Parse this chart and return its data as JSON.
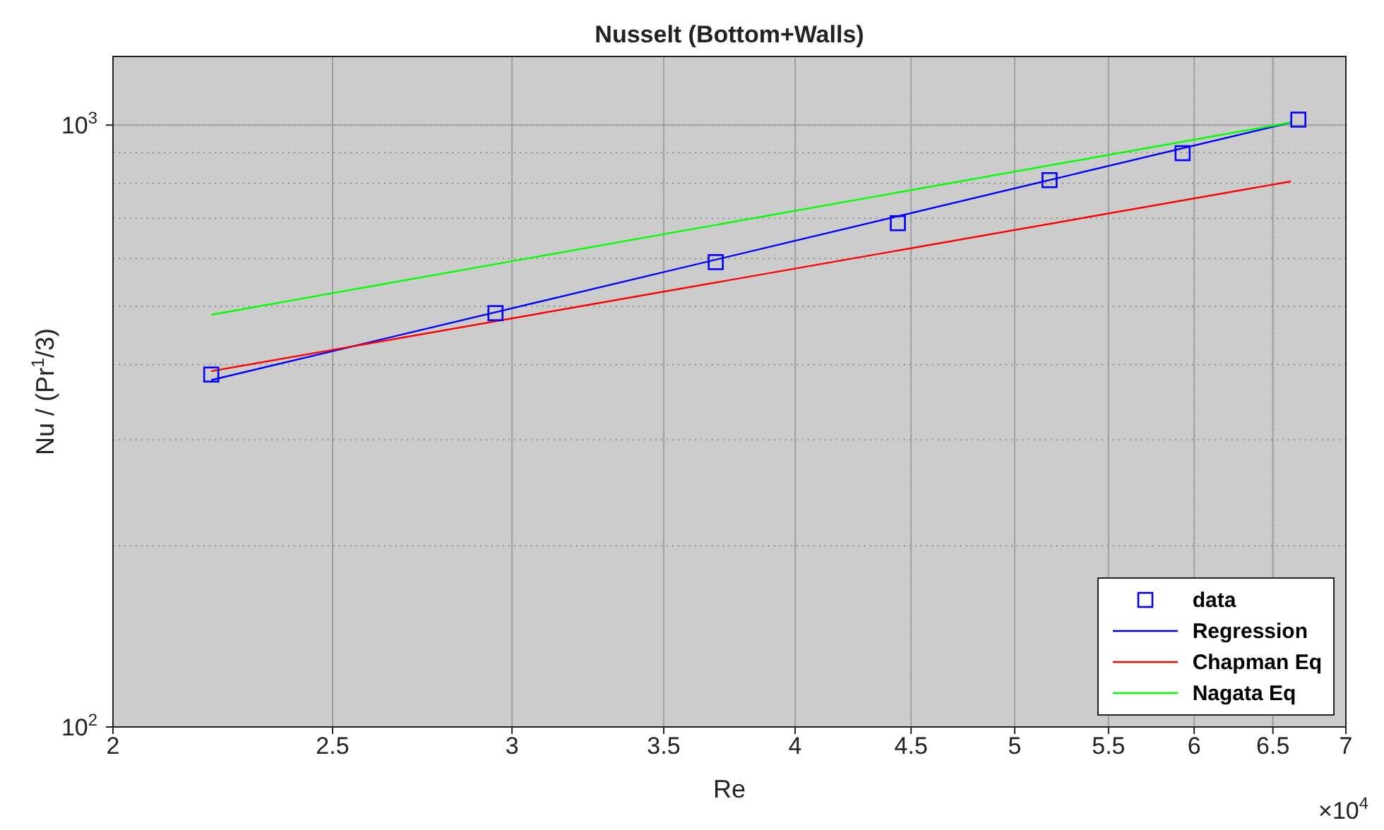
{
  "chart_data": {
    "type": "scatter",
    "title": "Nusselt (Bottom+Walls)",
    "xlabel": "Re",
    "ylabel": "Nu / (Pr$^{1}$/3)",
    "log": "xy",
    "grid": true,
    "legend": "bottom right",
    "xlim": [
      2,
      7
    ],
    "xticks": [
      2,
      2.5,
      3,
      3.5,
      4,
      4.5,
      5,
      5.5,
      6,
      6.5,
      7
    ],
    "ylim": [
      100,
      1300
    ],
    "yticks": [
      {
        "value": 100,
        "label": "10$^{2}$"
      },
      {
        "value": 1000,
        "label": "10$^{3}$"
      }
    ],
    "annotations": [
      "×10$^{4}$"
    ],
    "series": [
      {
        "name": "data",
        "marker": "square",
        "color": "#0000ff",
        "x": [
          2.21,
          2.95,
          3.69,
          4.44,
          5.18,
          5.93,
          6.67
        ],
        "values": [
          385,
          487,
          592,
          687,
          810,
          898,
          1021
        ]
      },
      {
        "name": "Regression",
        "type": "line",
        "marker": "none",
        "color": "#0000ff",
        "x": [
          2.21,
          6.62
        ],
        "values": [
          377,
          1010
        ]
      },
      {
        "name": "Chapman Eq",
        "type": "line",
        "marker": "none",
        "color": "#ff0000",
        "x": [
          2.21,
          6.62
        ],
        "values": [
          390,
          806
        ]
      },
      {
        "name": "Nagata Eq",
        "type": "line",
        "marker": "none",
        "color": "#00ff00",
        "x": [
          2.21,
          6.62
        ],
        "values": [
          484,
          1010
        ]
      }
    ]
  }
}
